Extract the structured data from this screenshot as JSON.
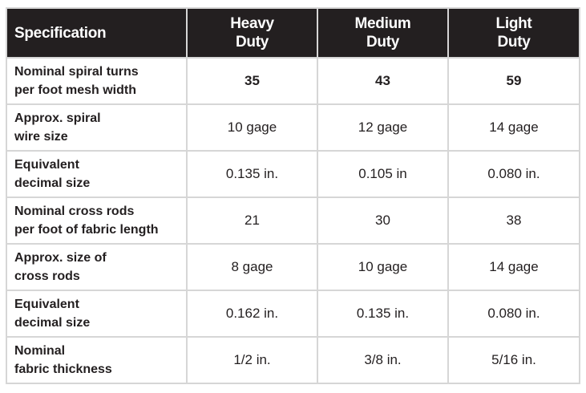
{
  "table": {
    "header": {
      "spec": "Specification",
      "columns": [
        {
          "line1": "Heavy",
          "line2": "Duty"
        },
        {
          "line1": "Medium",
          "line2": "Duty"
        },
        {
          "line1": "Light",
          "line2": "Duty"
        }
      ]
    },
    "rows": [
      {
        "label1": "Nominal spiral turns",
        "label2": "per foot mesh width",
        "values": [
          "35",
          "43",
          "59"
        ]
      },
      {
        "label1": "Approx. spiral",
        "label2": "wire size",
        "values": [
          "10 gage",
          "12 gage",
          "14 gage"
        ]
      },
      {
        "label1": "Equivalent",
        "label2": "decimal size",
        "values": [
          "0.135 in.",
          "0.105 in",
          "0.080 in."
        ]
      },
      {
        "label1": "Nominal cross rods",
        "label2": "per foot of fabric length",
        "values": [
          "21",
          "30",
          "38"
        ]
      },
      {
        "label1": "Approx. size of",
        "label2": "cross rods",
        "values": [
          "8 gage",
          "10 gage",
          "14 gage"
        ]
      },
      {
        "label1": "Equivalent",
        "label2": "decimal size",
        "values": [
          "0.162 in.",
          "0.135 in.",
          "0.080 in."
        ]
      },
      {
        "label1": "Nominal",
        "label2": "fabric thickness",
        "values": [
          "1/2 in.",
          "3/8 in.",
          "5/16 in."
        ]
      }
    ]
  }
}
